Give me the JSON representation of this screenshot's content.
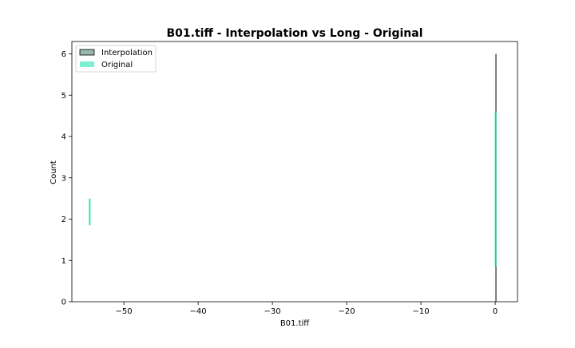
{
  "chart_data": {
    "type": "histogram",
    "title": "B01.tiff - Interpolation vs Long - Original",
    "xlabel": "B01.tiff",
    "ylabel": "Count",
    "xlim": [
      -57,
      3
    ],
    "ylim": [
      0,
      6.3
    ],
    "x_ticks": [
      -50,
      -40,
      -30,
      -20,
      -10,
      0
    ],
    "x_tick_labels": [
      "−50",
      "−40",
      "−30",
      "−20",
      "−10",
      "0"
    ],
    "y_ticks": [
      0,
      1,
      2,
      3,
      4,
      5,
      6
    ],
    "y_tick_labels": [
      "0",
      "1",
      "2",
      "3",
      "4",
      "5",
      "6"
    ],
    "grid": false,
    "legend_position": "top-left",
    "series": [
      {
        "name": "Interpolation",
        "color": "#2f6b4f",
        "fill_alpha": 0.5,
        "bars": [
          {
            "x": 0.1,
            "count": 6
          }
        ]
      },
      {
        "name": "Original",
        "color": "#00e0a0",
        "fill_alpha": 0.5,
        "bars": [
          {
            "x": -54.6,
            "count": 2.5,
            "bottom": 1.85
          },
          {
            "x": 0.05,
            "count": 4.6,
            "bottom": 0.85
          }
        ]
      }
    ]
  }
}
